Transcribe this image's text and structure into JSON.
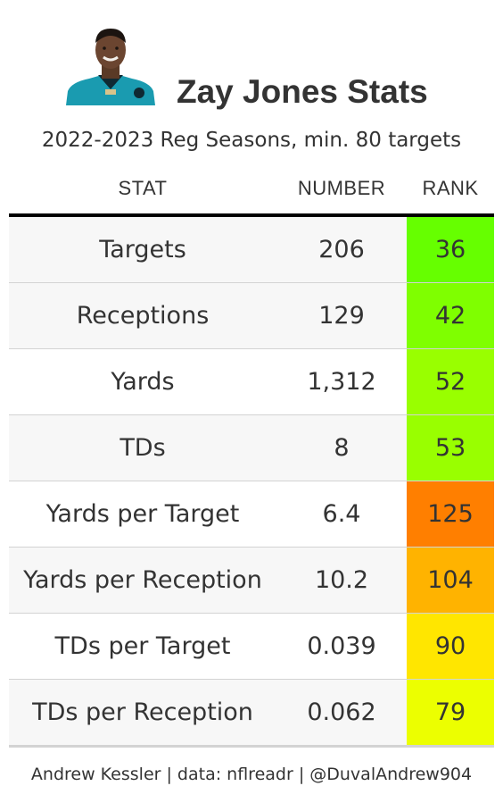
{
  "header": {
    "title": "Zay Jones Stats",
    "subtitle": "2022-2023 Reg Seasons, min. 80 targets"
  },
  "columns": {
    "stat": "STAT",
    "number": "NUMBER",
    "rank": "RANK"
  },
  "rows": [
    {
      "stat": "Targets",
      "number": "206",
      "rank": "36",
      "rank_color": "#66ff00"
    },
    {
      "stat": "Receptions",
      "number": "129",
      "rank": "42",
      "rank_color": "#7fff00"
    },
    {
      "stat": "Yards",
      "number": "1,312",
      "rank": "52",
      "rank_color": "#99ff00"
    },
    {
      "stat": "TDs",
      "number": "8",
      "rank": "53",
      "rank_color": "#99ff00"
    },
    {
      "stat": "Yards per Target",
      "number": "6.4",
      "rank": "125",
      "rank_color": "#ff7f00"
    },
    {
      "stat": "Yards per Reception",
      "number": "10.2",
      "rank": "104",
      "rank_color": "#ffb300"
    },
    {
      "stat": "TDs per Target",
      "number": "0.039",
      "rank": "90",
      "rank_color": "#ffe600"
    },
    {
      "stat": "TDs per Reception",
      "number": "0.062",
      "rank": "79",
      "rank_color": "#ecff00"
    }
  ],
  "footer": "Andrew Kessler | data: nflreadr | @DuvalAndrew904",
  "headshot": {
    "icon": "player-headshot",
    "jersey_color": "#1a9bb0"
  }
}
